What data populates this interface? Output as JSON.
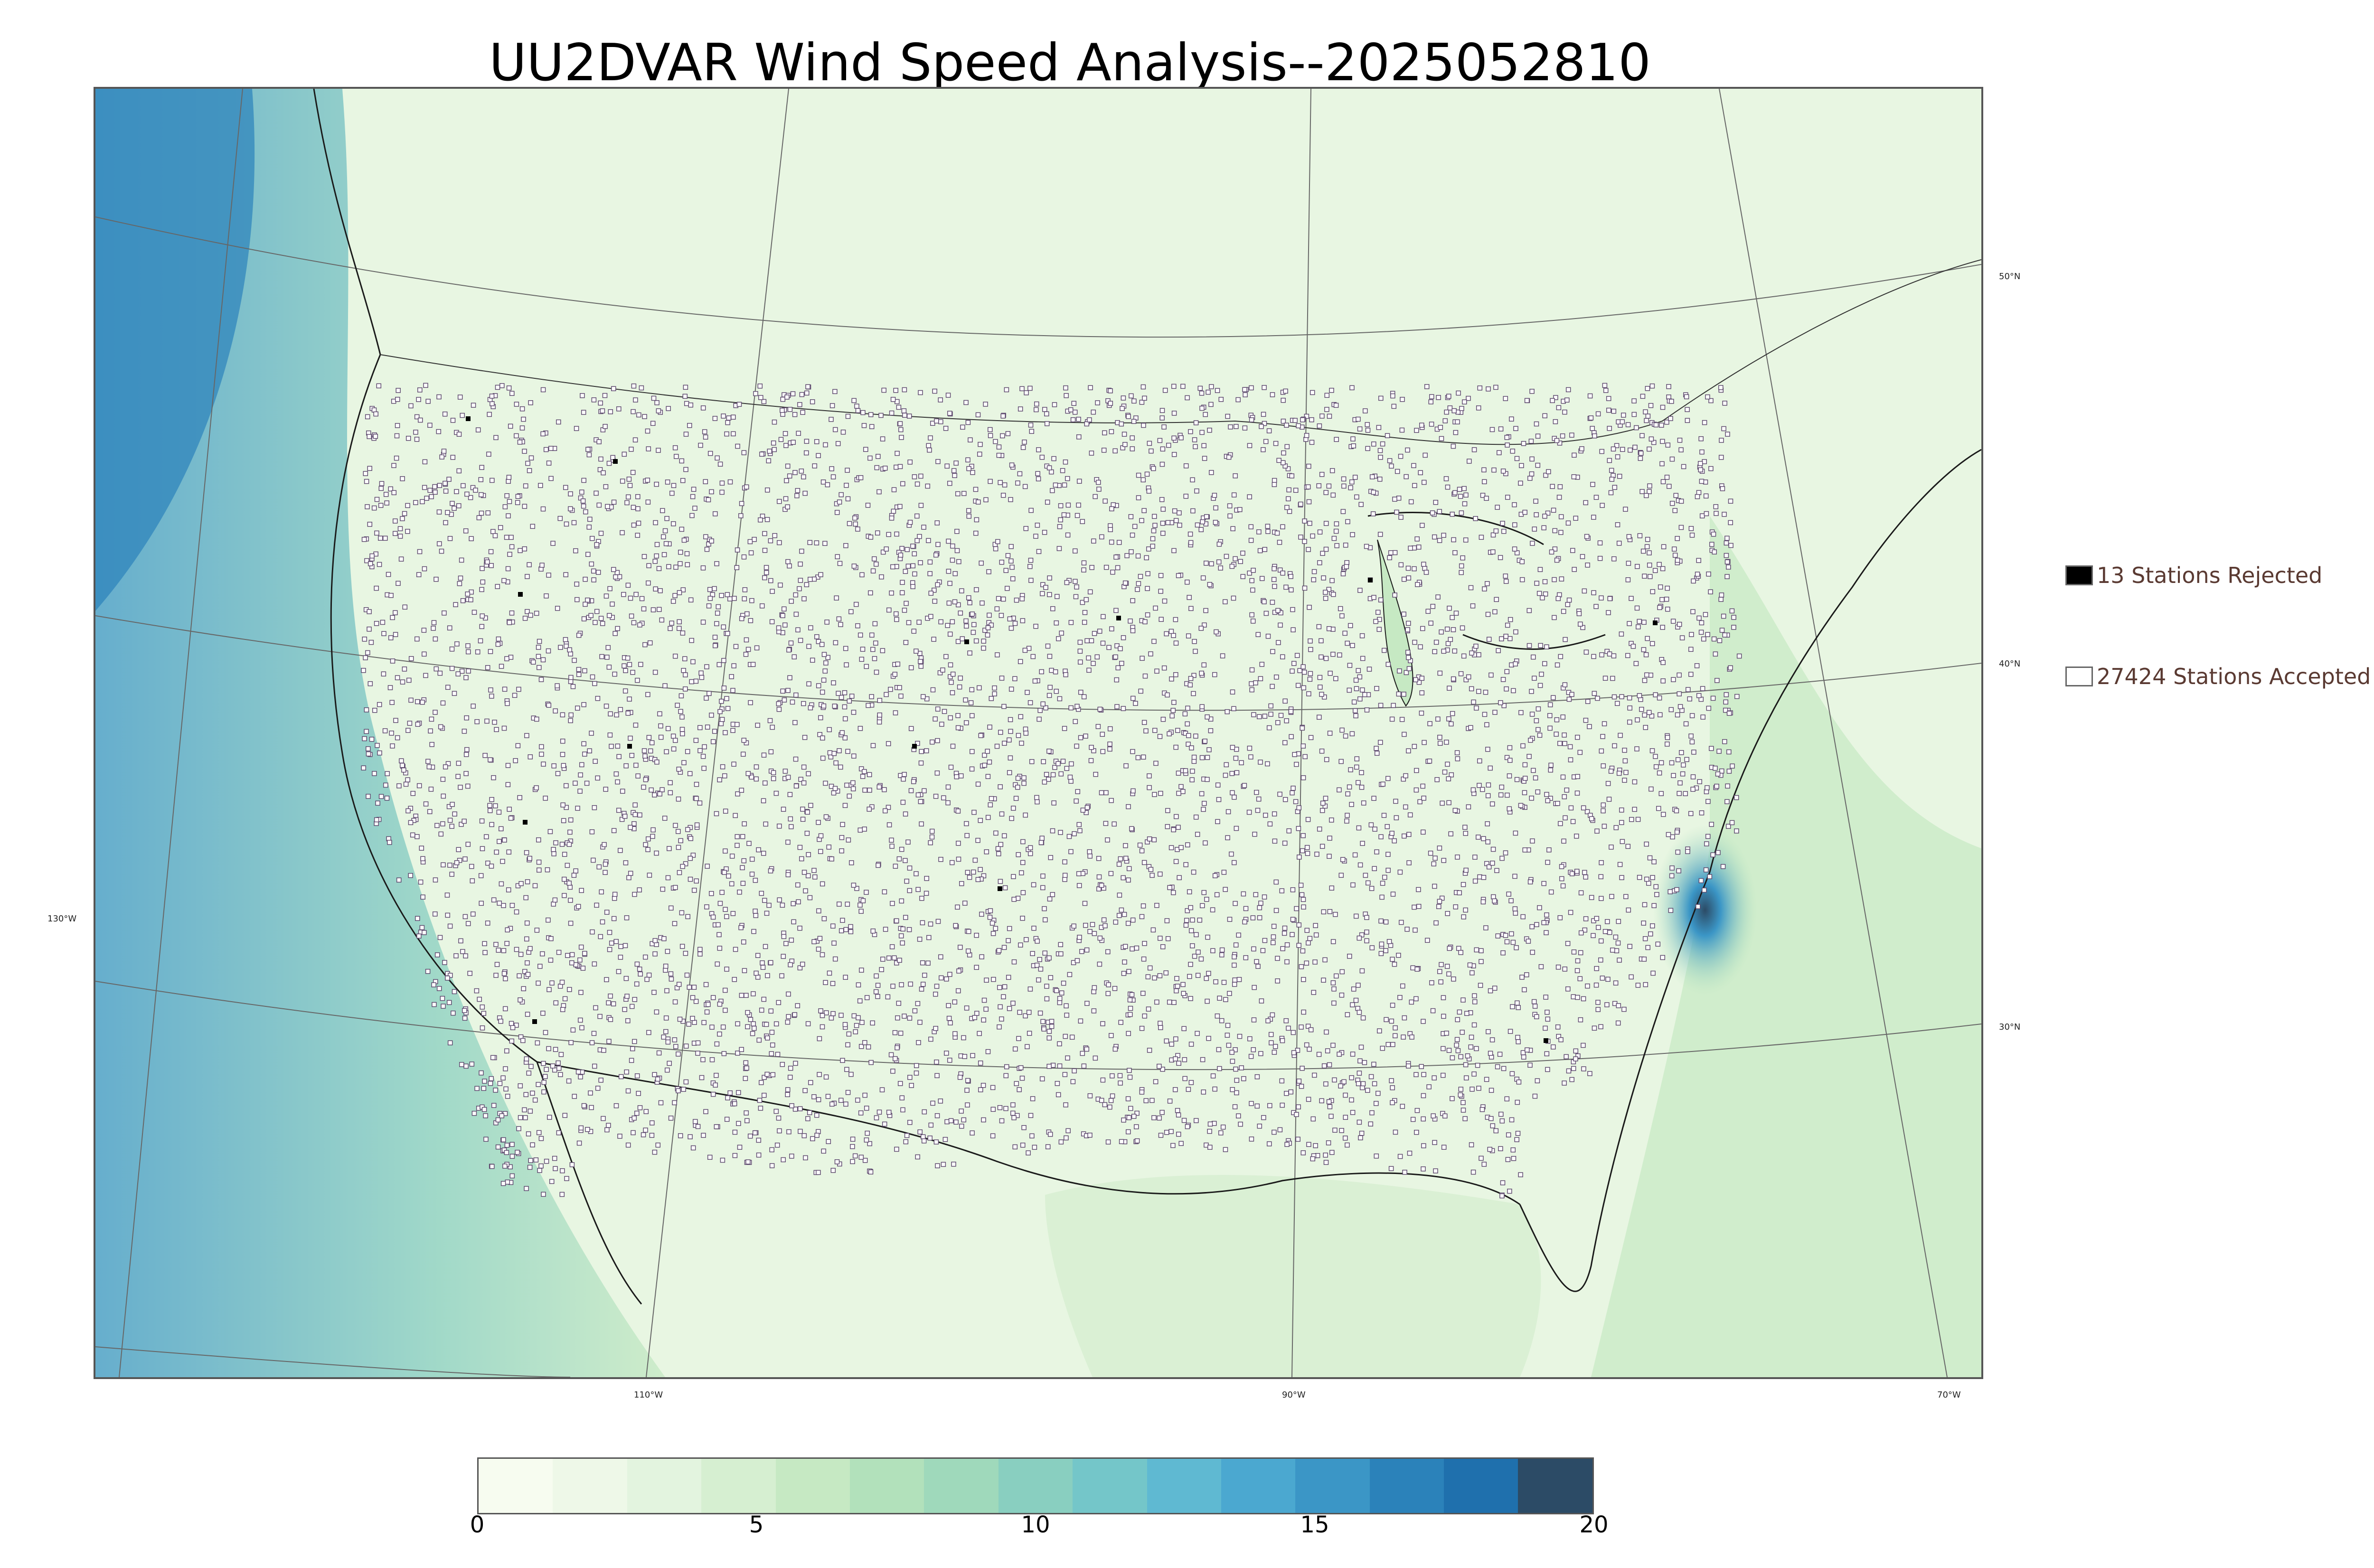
{
  "title": "UU2DVAR Wind Speed Analysis--2025052810",
  "map": {
    "lon_labels": [
      "130°W",
      "110°W",
      "90°W",
      "70°W"
    ],
    "lat_labels": [
      "50°N",
      "40°N",
      "30°N"
    ]
  },
  "legend": {
    "rejected": {
      "label": "13 Stations Rejected",
      "color": "#000000"
    },
    "accepted": {
      "label": "27424 Stations Accepted",
      "color": "#ffffff"
    }
  },
  "colorbar": {
    "min": 0,
    "max": 20,
    "ticks": [
      "0",
      "5",
      "10",
      "15",
      "20"
    ],
    "colors": [
      "#f7fcf0",
      "#eef8e8",
      "#e3f4df",
      "#d6efd1",
      "#c6e9c3",
      "#b2e1bb",
      "#9fd9bb",
      "#89cfc0",
      "#74c6c9",
      "#5fb9d2",
      "#4ba8d0",
      "#3b96c6",
      "#2b82ba",
      "#1f70ad",
      "#2c4b66"
    ]
  },
  "colors": {
    "station_outline": "#5e4a6e",
    "coast": "#1a1a1a",
    "graticule": "#666666"
  }
}
